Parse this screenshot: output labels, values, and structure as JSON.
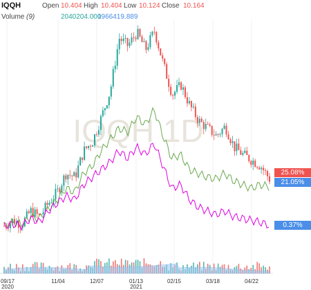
{
  "header": {
    "symbol": "IQQH",
    "open_label": "Open",
    "open_value": "10.404",
    "high_label": "High",
    "high_value": "10.404",
    "low_label": "Low",
    "low_value": "10.124",
    "close_label": "Close",
    "close_value": "10.164",
    "volume_label": "Volume",
    "volume_period": "(9)",
    "volume_value": "2040204.000",
    "volume_ma_value": "1966419.889"
  },
  "watermark": "IQQH 1D",
  "colors": {
    "up": "#26a69a",
    "down": "#ef5350",
    "series_green": "#6aa84f",
    "series_magenta": "#e000e0",
    "badge_red": "#ef5350",
    "badge_blue": "#4a8ee8"
  },
  "badges": {
    "red": "25.08%",
    "blue_top": "21.05%",
    "blue_bottom": "0.37%"
  },
  "x_ticks": [
    {
      "label": "09/17",
      "sub": "2020"
    },
    {
      "label": "11/04",
      "sub": ""
    },
    {
      "label": "12/07",
      "sub": ""
    },
    {
      "label": "01/13",
      "sub": "2021"
    },
    {
      "label": "02/15",
      "sub": ""
    },
    {
      "label": "03/18",
      "sub": ""
    },
    {
      "label": "04/22",
      "sub": ""
    }
  ],
  "chart_data": {
    "type": "line",
    "title": "IQQH",
    "x_labels": [
      "09/17 2020",
      "11/04",
      "12/07",
      "01/13 2021",
      "02/15",
      "03/18",
      "04/22"
    ],
    "series": [
      {
        "name": "IQQH",
        "last_change_pct": 25.08,
        "values_pct": [
          0,
          3,
          1,
          8,
          5,
          12,
          18,
          28,
          26,
          40,
          45,
          58,
          72,
          100,
          96,
          103,
          94,
          104,
          86,
          70,
          75,
          64,
          56,
          52,
          48,
          53,
          42,
          38,
          35,
          32,
          25
        ]
      },
      {
        "name": "",
        "last_change_pct": 21.05,
        "values_pct": [
          0,
          2,
          1,
          5,
          4,
          9,
          14,
          20,
          18,
          28,
          32,
          40,
          46,
          52,
          50,
          58,
          54,
          62,
          48,
          36,
          38,
          30,
          28,
          26,
          25,
          28,
          24,
          22,
          20,
          22,
          21
        ]
      },
      {
        "name": "",
        "last_change_pct": 0.37,
        "values_pct": [
          0,
          1,
          0,
          4,
          2,
          8,
          12,
          16,
          14,
          22,
          26,
          30,
          34,
          40,
          36,
          42,
          38,
          44,
          32,
          20,
          22,
          14,
          10,
          8,
          6,
          8,
          5,
          4,
          3,
          2,
          0.37
        ]
      }
    ],
    "volume": {
      "label": "Volume (9)",
      "value": 2040204.0,
      "ma": 1966419.889
    },
    "grid": true
  }
}
